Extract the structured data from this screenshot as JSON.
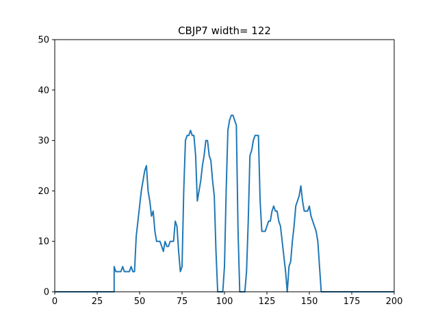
{
  "chart_data": {
    "type": "line",
    "title": "CBJP7 width= 122",
    "xlabel": "",
    "ylabel": "",
    "xlim": [
      0,
      200
    ],
    "ylim": [
      0,
      50
    ],
    "xticks": [
      0,
      25,
      50,
      75,
      100,
      125,
      150,
      175,
      200
    ],
    "yticks": [
      0,
      10,
      20,
      30,
      40,
      50
    ],
    "grid": false,
    "series_color": "#1f77b4",
    "series": [
      {
        "x": [
          0,
          35,
          35,
          36,
          37,
          38,
          39,
          40,
          41,
          42,
          43,
          44,
          45,
          46,
          47,
          48,
          49,
          50,
          51,
          52,
          53,
          54,
          55,
          56,
          57,
          58,
          59,
          60,
          61,
          62,
          63,
          64,
          65,
          66,
          67,
          68,
          69,
          70,
          71,
          72,
          73,
          74,
          75,
          76,
          77,
          78,
          79,
          80,
          81,
          82,
          83,
          84,
          85,
          86,
          87,
          88,
          89,
          90,
          91,
          92,
          93,
          94,
          95,
          96,
          97,
          98,
          99,
          100,
          101,
          102,
          103,
          104,
          105,
          106,
          107,
          108,
          109,
          110,
          111,
          112,
          113,
          114,
          115,
          116,
          117,
          118,
          119,
          120,
          121,
          122,
          123,
          124,
          125,
          126,
          127,
          128,
          129,
          130,
          131,
          132,
          133,
          134,
          135,
          136,
          137,
          138,
          139,
          140,
          141,
          142,
          143,
          144,
          145,
          146,
          147,
          148,
          149,
          150,
          151,
          152,
          153,
          154,
          155,
          156,
          157,
          200
        ],
        "y": [
          0,
          0,
          5,
          4,
          4,
          4,
          4,
          5,
          4,
          4,
          4,
          4,
          5,
          4,
          4,
          11,
          14,
          17,
          20,
          22,
          24,
          25,
          20,
          18,
          15,
          16,
          12,
          10,
          10,
          10,
          9,
          8,
          10,
          9,
          9,
          10,
          10,
          10,
          14,
          13,
          8,
          4,
          5,
          20,
          30,
          31,
          31,
          32,
          31,
          31,
          27,
          18,
          20,
          22,
          25,
          27,
          30,
          30,
          27,
          26,
          22,
          19,
          8,
          0,
          0,
          0,
          0,
          5,
          20,
          32,
          34,
          35,
          35,
          34,
          33,
          12,
          0,
          0,
          0,
          0,
          4,
          14,
          27,
          28,
          30,
          31,
          31,
          31,
          18,
          12,
          12,
          12,
          13,
          14,
          14,
          16,
          17,
          16,
          16,
          14,
          13,
          10,
          7,
          4,
          0,
          5,
          6,
          10,
          13,
          17,
          18,
          19,
          21,
          18,
          16,
          16,
          16,
          17,
          15,
          14,
          13,
          12,
          10,
          5,
          0,
          0
        ]
      }
    ]
  }
}
